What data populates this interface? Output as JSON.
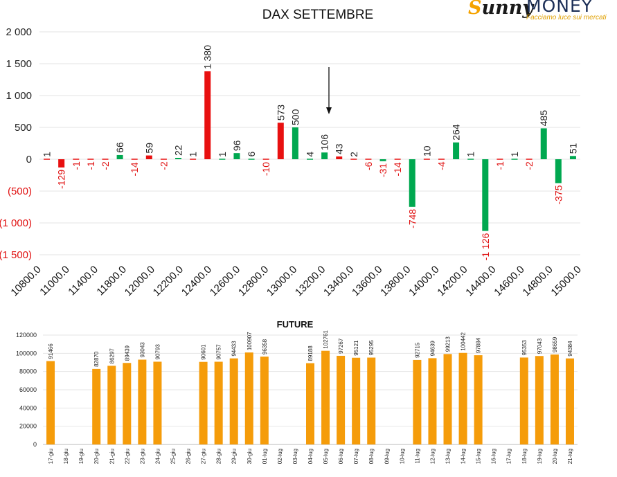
{
  "logo": {
    "brand": "Sunny",
    "money": "MONEY",
    "tagline": "Facciamo luce sui mercati"
  },
  "chart_data": [
    {
      "type": "bar",
      "title": "DAX SETTEMBRE",
      "ylim": [
        -1500,
        2000
      ],
      "yticks": [
        "2 000",
        "1 500",
        "1 000",
        "500",
        "0",
        "(500)",
        "(1 000)",
        "(1 500)"
      ],
      "ytick_values": [
        2000,
        1500,
        1000,
        500,
        0,
        -500,
        -1000,
        -1500
      ],
      "xtick_labels": [
        "10800.0",
        "11000.0",
        "11400.0",
        "11800.0",
        "12000.0",
        "12200.0",
        "12400.0",
        "12600.0",
        "12800.0",
        "13000.0",
        "13200.0",
        "13400.0",
        "13600.0",
        "13800.0",
        "14000.0",
        "14200.0",
        "14400.0",
        "14600.0",
        "14800.0",
        "15000.0"
      ],
      "grid": true,
      "annotation": "arrow pointing to current price",
      "bars": [
        {
          "label": "1",
          "value": 1,
          "color": "#e81010"
        },
        {
          "label": "-129",
          "value": -129,
          "color": "#e81010"
        },
        {
          "label": "-1",
          "value": -1,
          "color": "#e81010"
        },
        {
          "label": "-1",
          "value": -1,
          "color": "#e81010"
        },
        {
          "label": "-2",
          "value": -2,
          "color": "#e81010"
        },
        {
          "label": "66",
          "value": 66,
          "color": "#00a850"
        },
        {
          "label": "-14",
          "value": -14,
          "color": "#e81010"
        },
        {
          "label": "59",
          "value": 59,
          "color": "#e81010"
        },
        {
          "label": "-2",
          "value": -2,
          "color": "#e81010"
        },
        {
          "label": "22",
          "value": 22,
          "color": "#00a850"
        },
        {
          "label": "1",
          "value": 1,
          "color": "#e81010"
        },
        {
          "label": "1 380",
          "value": 1380,
          "color": "#e81010"
        },
        {
          "label": "1",
          "value": 1,
          "color": "#00a850"
        },
        {
          "label": "96",
          "value": 96,
          "color": "#00a850"
        },
        {
          "label": "6",
          "value": 6,
          "color": "#00a850"
        },
        {
          "label": "-10",
          "value": -10,
          "color": "#e81010"
        },
        {
          "label": "573",
          "value": 573,
          "color": "#e81010"
        },
        {
          "label": "500",
          "value": 500,
          "color": "#00a850"
        },
        {
          "label": "4",
          "value": 4,
          "color": "#00a850"
        },
        {
          "label": "106",
          "value": 106,
          "color": "#00a850"
        },
        {
          "label": "43",
          "value": 43,
          "color": "#e81010"
        },
        {
          "label": "2",
          "value": 2,
          "color": "#e81010"
        },
        {
          "label": "-6",
          "value": -6,
          "color": "#e81010"
        },
        {
          "label": "-31",
          "value": -31,
          "color": "#00a850"
        },
        {
          "label": "-14",
          "value": -14,
          "color": "#e81010"
        },
        {
          "label": "-748",
          "value": -748,
          "color": "#00a850"
        },
        {
          "label": "10",
          "value": 10,
          "color": "#e81010"
        },
        {
          "label": "-4",
          "value": -4,
          "color": "#e81010"
        },
        {
          "label": "264",
          "value": 264,
          "color": "#00a850"
        },
        {
          "label": "1",
          "value": 1,
          "color": "#00a850"
        },
        {
          "label": "-1 126",
          "value": -1126,
          "color": "#00a850"
        },
        {
          "label": "-1",
          "value": -1,
          "color": "#e81010"
        },
        {
          "label": "1",
          "value": 1,
          "color": "#00a850"
        },
        {
          "label": "-2",
          "value": -2,
          "color": "#e81010"
        },
        {
          "label": "485",
          "value": 485,
          "color": "#00a850"
        },
        {
          "label": "-375",
          "value": -375,
          "color": "#00a850"
        },
        {
          "label": "51",
          "value": 51,
          "color": "#00a850"
        }
      ]
    },
    {
      "type": "bar",
      "title": "FUTURE",
      "ylim": [
        0,
        120000
      ],
      "yticks": [
        "120000",
        "100000",
        "80000",
        "60000",
        "40000",
        "20000",
        "0"
      ],
      "ytick_values": [
        120000,
        100000,
        80000,
        60000,
        40000,
        20000,
        0
      ],
      "color": "#f59c0a",
      "categories": [
        "17-giu",
        "18-giu",
        "19-giu",
        "20-giu",
        "21-giu",
        "22-giu",
        "23-giu",
        "24-giu",
        "25-giu",
        "26-giu",
        "27-giu",
        "28-giu",
        "29-giu",
        "30-giu",
        "01-lug",
        "02-lug",
        "03-lug",
        "04-lug",
        "05-lug",
        "06-lug",
        "07-lug",
        "08-lug",
        "09-lug",
        "10-lug",
        "11-lug",
        "12-lug",
        "13-lug",
        "14-lug",
        "15-lug",
        "16-lug",
        "17-lug",
        "18-lug",
        "19-lug",
        "20-lug",
        "21-lug"
      ],
      "values": [
        91466,
        null,
        null,
        82870,
        86297,
        89439,
        93043,
        90793,
        null,
        null,
        90601,
        90757,
        94433,
        100907,
        96358,
        null,
        null,
        89188,
        102761,
        97267,
        95121,
        95295,
        null,
        null,
        92715,
        94639,
        99213,
        100442,
        97884,
        null,
        null,
        95353,
        97043,
        98659,
        94384
      ]
    }
  ]
}
